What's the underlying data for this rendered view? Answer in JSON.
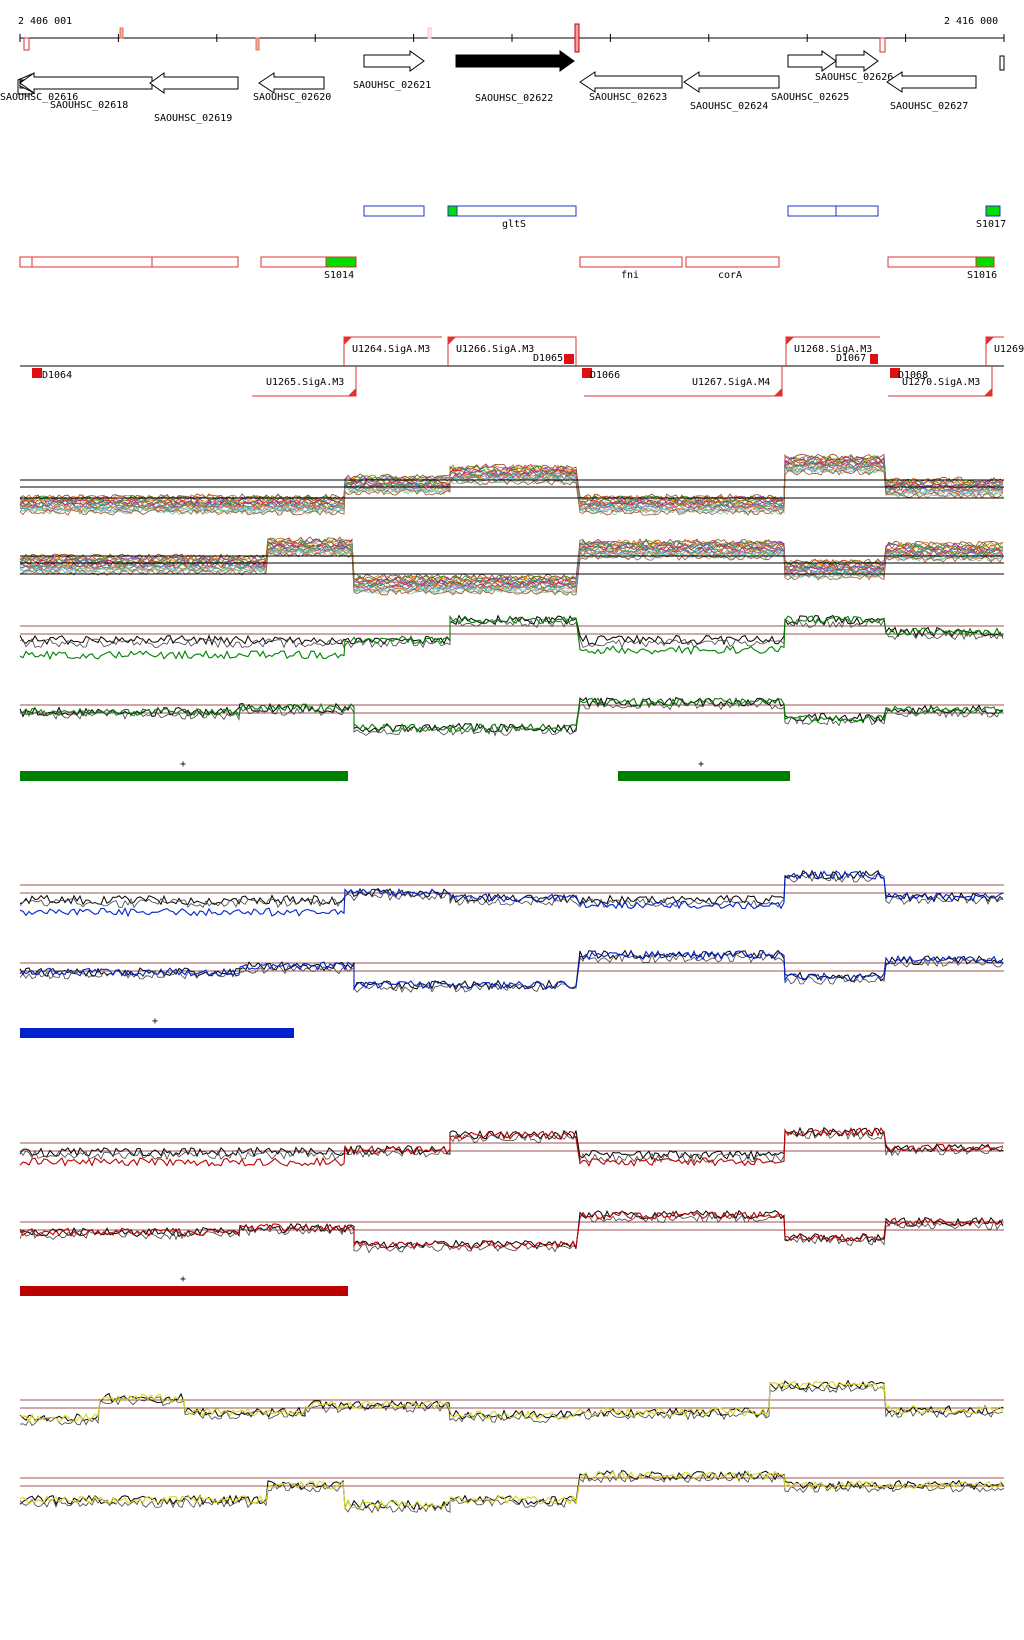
{
  "ruler": {
    "start": "2 406 001",
    "end": "2 416 000"
  },
  "genes": [
    {
      "label": "SAOUHSC_02616",
      "dir": "left",
      "filled": false
    },
    {
      "label": "SAOUHSC_02618",
      "dir": "left",
      "filled": false
    },
    {
      "label": "SAOUHSC_02619",
      "dir": "left",
      "filled": false
    },
    {
      "label": "SAOUHSC_02620",
      "dir": "left",
      "filled": false
    },
    {
      "label": "SAOUHSC_02621",
      "dir": "right",
      "filled": false
    },
    {
      "label": "SAOUHSC_02622",
      "dir": "right",
      "filled": true
    },
    {
      "label": "SAOUHSC_02623",
      "dir": "left",
      "filled": false
    },
    {
      "label": "SAOUHSC_02624",
      "dir": "left",
      "filled": false
    },
    {
      "label": "SAOUHSC_02625",
      "dir": "right",
      "filled": false
    },
    {
      "label": "SAOUHSC_02626",
      "dir": "right",
      "filled": false
    },
    {
      "label": "SAOUHSC_02627",
      "dir": "left",
      "filled": false
    }
  ],
  "features": {
    "blue_labels": [
      "gltS",
      "S1017"
    ],
    "red_labels": [
      "S1014",
      "fni",
      "corA",
      "S1016"
    ]
  },
  "promoters": [
    "U1264.SigA.M3",
    "U1265.SigA.M3",
    "U1266.SigA.M3",
    "U1267.SigA.M4",
    "U1268.SigA.M3",
    "U1269",
    "U1270.SigA.M3"
  ],
  "terminators": [
    "D1064",
    "D1065",
    "D1066",
    "D1067",
    "D1068"
  ],
  "segment_markers": [
    "+",
    "+",
    "+",
    "+"
  ],
  "colors": {
    "green": "#008000",
    "blue": "#0022cc",
    "red": "#bb0000",
    "yellow": "#d8d820",
    "feature_red": "#e03030",
    "feature_blue": "#2233cc",
    "bright_green": "#00dd00",
    "threshold": "#a05050"
  }
}
